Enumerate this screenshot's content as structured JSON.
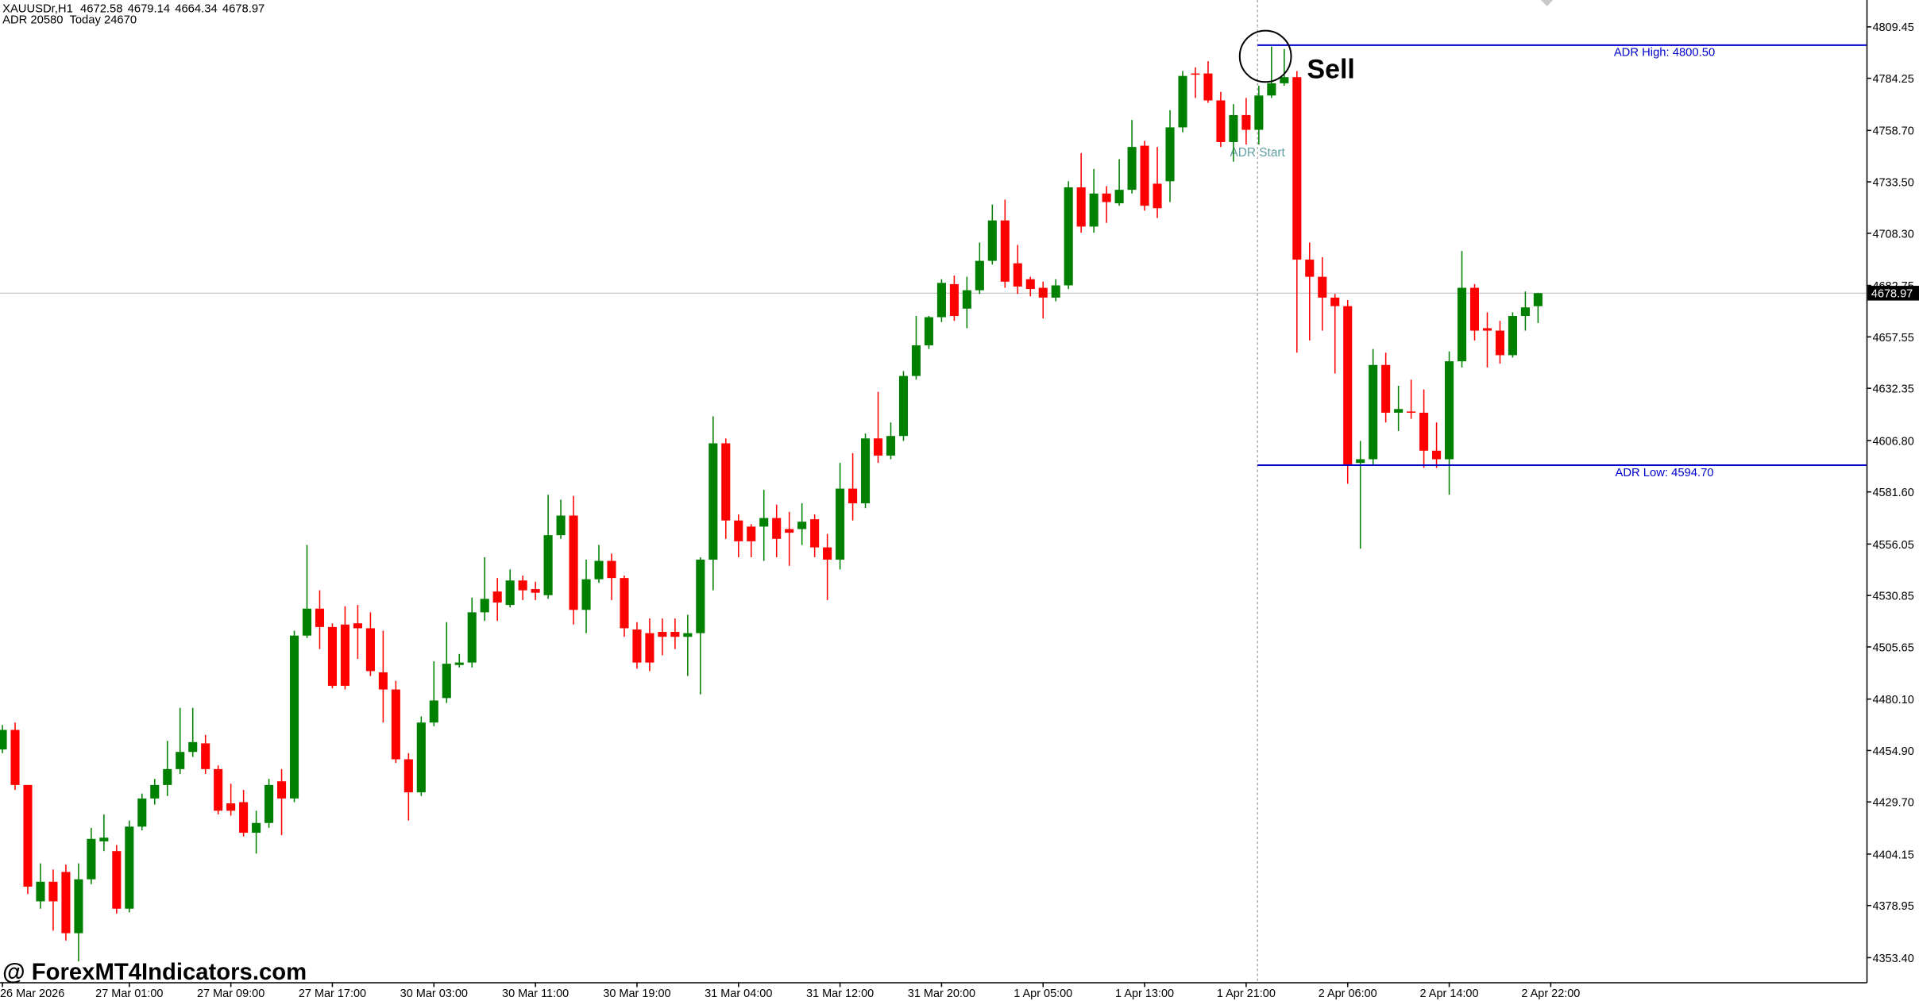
{
  "chart_data": {
    "type": "candlestick",
    "symbol": "XAUUSDr,H1",
    "indicator_text": "ADR 20580  Today 24670",
    "up_color": "#008000",
    "down_color": "#ff0000",
    "open": [
      4455.4,
      4465.0,
      4438.0,
      4381.0,
      4390.6,
      4395.4,
      4365.4,
      4391.8,
      4410.4,
      4405.6,
      4377.4,
      4417.6,
      4431.4,
      4438.0,
      4445.8,
      4454.2,
      4458.4,
      4445.8,
      4429.0,
      4429.6,
      4414.6,
      4419.4,
      4439.8,
      4431.4,
      4511.2,
      4524.4,
      4515.4,
      4516.6,
      4517.2,
      4514.8,
      4493.2,
      4484.8,
      4450.6,
      4434.4,
      4468.6,
      4480.6,
      4496.8,
      4498.0,
      4522.6,
      4532.8,
      4526.2,
      4538.2,
      4534.0,
      4531.0,
      4560.4,
      4570.0,
      4523.8,
      4538.8,
      4547.8,
      4539.4,
      4514.2,
      4512.4,
      4513.0,
      4513.0,
      4510.6,
      4512.4,
      4548.4,
      4605.4,
      4567.6,
      4564.6,
      4564.6,
      4568.8,
      4563.4,
      4563.4,
      4568.2,
      4554.4,
      4548.4,
      4583.2,
      4576.0,
      4607.8,
      4599.4,
      4609.0,
      4638.4,
      4653.4,
      4667.2,
      4683.4,
      4671.4,
      4680.4,
      4694.8,
      4714.6,
      4693.6,
      4685.8,
      4681.6,
      4676.8,
      4682.8,
      4730.8,
      4711.6,
      4727.8,
      4723.0,
      4729.6,
      4751.2,
      4732.6,
      4733.8,
      4760.2,
      4786.6,
      4786.6,
      4773.4,
      4753.0,
      4766.2,
      4759.0,
      4775.8,
      4781.8,
      4784.8,
      4695.4,
      4687.0,
      4676.8,
      4672.6,
      4595.8,
      4597.6,
      4643.8,
      4620.4,
      4621.0,
      4620.4,
      4601.8,
      4597.6,
      4645.6,
      4681.6,
      4661.8,
      4660.6,
      4648.6,
      4667.8,
      4672.58
    ],
    "high": [
      4467.4,
      4468.6,
      4438.0,
      4399.6,
      4396.6,
      4399.0,
      4399.6,
      4417.0,
      4423.6,
      4408.6,
      4420.6,
      4433.8,
      4441.0,
      4459.6,
      4475.8,
      4475.8,
      4462.6,
      4447.6,
      4438.6,
      4435.6,
      4425.4,
      4441.0,
      4445.8,
      4513.6,
      4555.6,
      4533.4,
      4517.2,
      4525.6,
      4526.2,
      4522.6,
      4513.6,
      4489.0,
      4453.6,
      4471.6,
      4498.6,
      4517.8,
      4502.2,
      4529.8,
      4549.6,
      4539.4,
      4543.6,
      4540.6,
      4537.6,
      4580.2,
      4577.8,
      4579.6,
      4548.4,
      4555.6,
      4551.4,
      4540.6,
      4517.8,
      4519.6,
      4519.6,
      4519.6,
      4521.4,
      4549.6,
      4618.6,
      4607.8,
      4570.6,
      4565.8,
      4582.6,
      4575.4,
      4571.8,
      4576.0,
      4570.6,
      4561.0,
      4595.8,
      4600.6,
      4610.2,
      4630.6,
      4615.6,
      4640.8,
      4667.8,
      4667.8,
      4685.8,
      4687.6,
      4687.0,
      4703.8,
      4722.4,
      4724.8,
      4702.6,
      4687.0,
      4684.6,
      4685.8,
      4733.8,
      4747.6,
      4739.8,
      4731.4,
      4744.6,
      4763.8,
      4753.6,
      4750.6,
      4768.6,
      4787.8,
      4789.6,
      4792.6,
      4777.6,
      4771.6,
      4774.6,
      4780.6,
      4799.8,
      4798.6,
      4787.8,
      4703.8,
      4696.6,
      4678.6,
      4675.6,
      4606.6,
      4651.6,
      4649.8,
      4633.6,
      4636.6,
      4631.8,
      4615.6,
      4650.4,
      4699.6,
      4683.4,
      4669.6,
      4665.4,
      4669.6,
      4679.8,
      4679.14
    ],
    "low": [
      4453.6,
      4435.6,
      4384.6,
      4377.4,
      4366.6,
      4361.8,
      4351.6,
      4389.4,
      4405.6,
      4375.0,
      4375.6,
      4415.8,
      4428.4,
      4432.6,
      4443.4,
      4451.8,
      4443.4,
      4423.6,
      4423.0,
      4412.8,
      4404.4,
      4417.0,
      4413.4,
      4429.6,
      4510.0,
      4504.6,
      4485.4,
      4484.8,
      4499.8,
      4491.4,
      4468.6,
      4448.8,
      4420.6,
      4432.6,
      4466.8,
      4478.2,
      4495.6,
      4495.6,
      4518.4,
      4518.4,
      4525.0,
      4528.6,
      4528.6,
      4529.2,
      4558.6,
      4516.6,
      4512.4,
      4537.0,
      4528.6,
      4510.6,
      4495.0,
      4493.8,
      4501.6,
      4504.6,
      4491.4,
      4482.4,
      4533.4,
      4558.6,
      4549.6,
      4549.6,
      4547.8,
      4549.6,
      4545.4,
      4555.6,
      4549.6,
      4528.6,
      4543.6,
      4567.6,
      4573.6,
      4595.8,
      4597.6,
      4606.6,
      4636.6,
      4651.6,
      4664.8,
      4665.4,
      4661.8,
      4678.6,
      4693.0,
      4681.6,
      4678.6,
      4677.4,
      4666.6,
      4675.0,
      4681.0,
      4708.6,
      4708.6,
      4713.4,
      4721.8,
      4727.8,
      4719.4,
      4715.8,
      4723.6,
      4757.8,
      4774.6,
      4772.2,
      4750.6,
      4743.4,
      4751.8,
      4751.8,
      4774.6,
      4780.6,
      4649.8,
      4655.8,
      4660.6,
      4639.6,
      4585.6,
      4553.8,
      4594.6,
      4615.6,
      4611.4,
      4617.4,
      4593.4,
      4593.4,
      4580.2,
      4642.6,
      4655.8,
      4642.6,
      4644.4,
      4647.4,
      4660.6,
      4664.34
    ],
    "close": [
      4465.0,
      4438.0,
      4388.2,
      4390.6,
      4381.0,
      4365.4,
      4391.8,
      4411.6,
      4412.2,
      4377.4,
      4417.6,
      4431.4,
      4438.0,
      4445.8,
      4454.2,
      4459.0,
      4445.8,
      4425.4,
      4425.4,
      4414.6,
      4419.4,
      4438.0,
      4431.4,
      4511.2,
      4524.4,
      4515.4,
      4486.6,
      4486.6,
      4514.8,
      4493.8,
      4484.8,
      4450.6,
      4434.4,
      4468.6,
      4479.4,
      4497.4,
      4498.0,
      4522.6,
      4529.2,
      4527.4,
      4538.2,
      4533.4,
      4532.2,
      4560.4,
      4570.0,
      4523.8,
      4538.8,
      4547.8,
      4539.4,
      4514.8,
      4498.0,
      4498.0,
      4510.6,
      4510.6,
      4512.4,
      4548.4,
      4605.4,
      4567.6,
      4557.4,
      4557.4,
      4568.8,
      4558.6,
      4561.6,
      4567.0,
      4554.4,
      4548.4,
      4583.2,
      4576.0,
      4607.8,
      4599.4,
      4609.0,
      4638.4,
      4653.4,
      4667.2,
      4684.0,
      4667.8,
      4680.4,
      4694.8,
      4714.6,
      4684.6,
      4682.2,
      4681.0,
      4676.8,
      4682.8,
      4730.8,
      4711.6,
      4727.8,
      4723.6,
      4729.6,
      4750.6,
      4721.8,
      4720.6,
      4760.2,
      4785.4,
      4786.0,
      4773.4,
      4753.0,
      4766.2,
      4759.0,
      4775.8,
      4781.8,
      4784.8,
      4695.4,
      4687.0,
      4676.8,
      4672.6,
      4594.6,
      4597.6,
      4643.8,
      4620.4,
      4622.2,
      4620.4,
      4601.8,
      4597.6,
      4645.6,
      4681.6,
      4660.6,
      4660.6,
      4648.6,
      4667.8,
      4672.0,
      4678.97
    ],
    "xlim": [
      -0.19,
      146.87
    ],
    "xticks": [
      {
        "value": 0,
        "label": "26 Mar 2026"
      },
      {
        "value": 10,
        "label": "27 Mar 01:00"
      },
      {
        "value": 18,
        "label": "27 Mar 09:00"
      },
      {
        "value": 26,
        "label": "27 Mar 17:00"
      },
      {
        "value": 34,
        "label": "30 Mar 03:00"
      },
      {
        "value": 42,
        "label": "30 Mar 11:00"
      },
      {
        "value": 50,
        "label": "30 Mar 19:00"
      },
      {
        "value": 58,
        "label": "31 Mar 04:00"
      },
      {
        "value": 66,
        "label": "31 Mar 12:00"
      },
      {
        "value": 74,
        "label": "31 Mar 20:00"
      },
      {
        "value": 82,
        "label": "1 Apr 05:00"
      },
      {
        "value": 90,
        "label": "1 Apr 13:00"
      },
      {
        "value": 98,
        "label": "1 Apr 21:00"
      },
      {
        "value": 106,
        "label": "2 Apr 06:00"
      },
      {
        "value": 114,
        "label": "2 Apr 14:00"
      },
      {
        "value": 122,
        "label": "2 Apr 22:00"
      }
    ],
    "ylim": [
      4341.4,
      4822.6
    ],
    "yticks": [
      4809.45,
      4784.25,
      {
        "value": 4758.7,
        "label": "4758.70"
      },
      {
        "value": 4733.5,
        "label": "4733.50"
      },
      {
        "value": 4708.3,
        "label": "4708.30"
      },
      4682.75,
      4657.55,
      4632.35,
      {
        "value": 4606.8,
        "label": "4606.80"
      },
      {
        "value": 4581.6,
        "label": "4581.60"
      },
      4556.05,
      4530.85,
      4505.65,
      {
        "value": 4480.1,
        "label": "4480.10"
      },
      {
        "value": 4454.9,
        "label": "4454.90"
      },
      {
        "value": 4429.7,
        "label": "4429.70"
      },
      4404.15,
      4378.95,
      {
        "value": 4353.4,
        "label": "4353.40"
      }
    ],
    "levels": [
      {
        "label": "ADR High: 4800.50",
        "value": 4800.5,
        "color": "#0000cc"
      },
      {
        "label": "ADR Low: 4594.70",
        "value": 4594.7,
        "color": "#0000cc"
      }
    ],
    "adr_start_label": "ADR Start",
    "signal": "Sell",
    "watermark": "@ ForexMT4Indicators.com"
  }
}
